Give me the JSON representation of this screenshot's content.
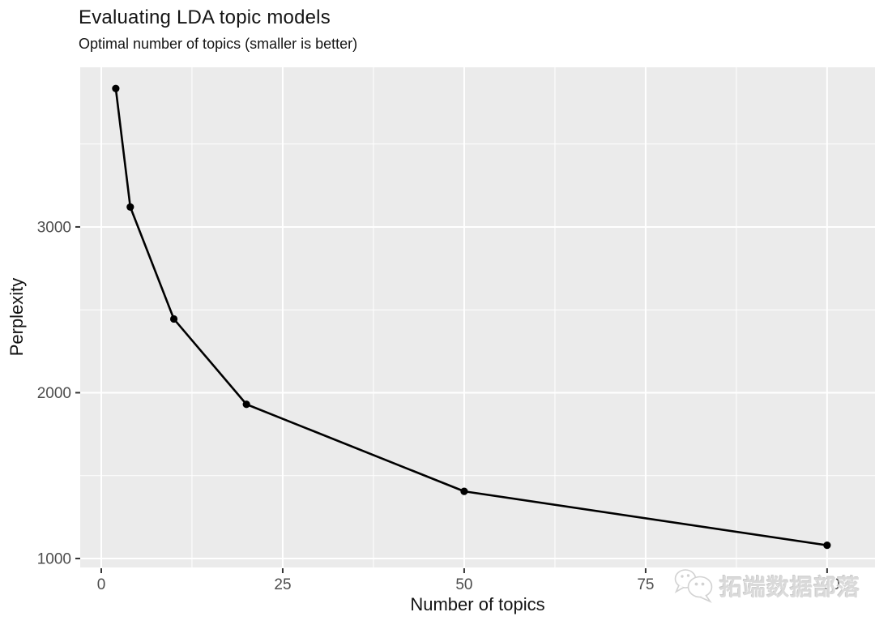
{
  "chart_data": {
    "type": "line",
    "title": "Evaluating LDA topic models",
    "subtitle": "Optimal number of topics (smaller is better)",
    "xlabel": "Number of topics",
    "ylabel": "Perplexity",
    "x": [
      2,
      4,
      10,
      20,
      50,
      100
    ],
    "series": [
      {
        "name": "perplexity",
        "values": [
          3835,
          3120,
          2445,
          1930,
          1405,
          1080
        ]
      }
    ],
    "x_ticks": [
      0,
      25,
      50,
      75,
      100
    ],
    "x_minor_ticks": [
      12.5,
      37.5,
      62.5,
      87.5
    ],
    "y_ticks": [
      1000,
      2000,
      3000
    ],
    "y_minor_ticks": [
      1500,
      2500,
      3500
    ],
    "xlim": [
      -2.9,
      106.6
    ],
    "ylim": [
      946,
      3963
    ],
    "grid": "major+minor white gridlines on grey panel",
    "legend": "none",
    "line_color": "#000000",
    "point_color": "#000000",
    "panel_bg": "#ebebeb",
    "grid_color": "#ffffff",
    "tick_mark_color": "#333333",
    "tick_label_color": "#4d4d4d",
    "axis_title_color": "#141414"
  },
  "watermark": {
    "icon": "wechat-icon",
    "text": "拓端数据部落"
  }
}
